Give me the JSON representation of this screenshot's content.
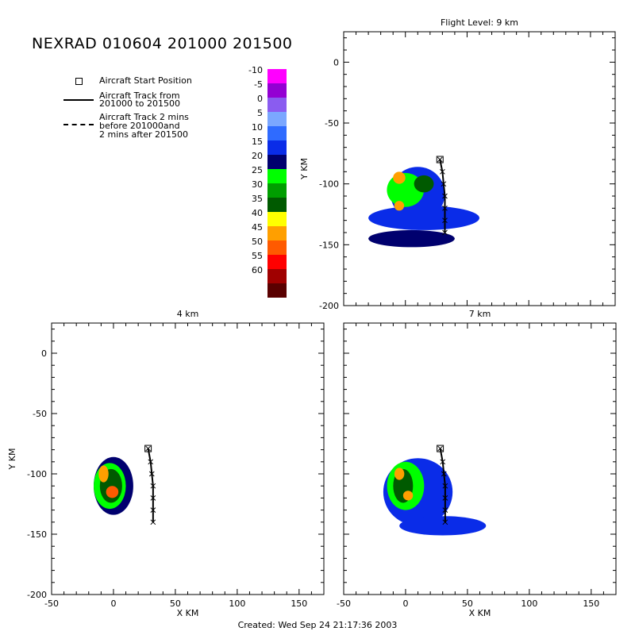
{
  "title": "NEXRAD 010604 201000 201500",
  "created": "Created: Wed Sep 24 21:17:36 2003",
  "legend": {
    "start_label": "Aircraft Start Position",
    "track_lines": [
      "Aircraft Track from",
      "201000 to 201500"
    ],
    "track2_lines": [
      "Aircraft Track 2 mins",
      "before 201000and",
      "2 mins after 201500"
    ]
  },
  "colorbar": {
    "levels": [
      {
        "label": "-10",
        "color": "#ff00ff"
      },
      {
        "label": "-5",
        "color": "#9400d3"
      },
      {
        "label": "0",
        "color": "#8a5cf0"
      },
      {
        "label": "5",
        "color": "#7ba7ff"
      },
      {
        "label": "10",
        "color": "#2f6bff"
      },
      {
        "label": "15",
        "color": "#0a2ce8"
      },
      {
        "label": "20",
        "color": "#00006e"
      },
      {
        "label": "25",
        "color": "#00ff00"
      },
      {
        "label": "30",
        "color": "#009e00"
      },
      {
        "label": "35",
        "color": "#005a00"
      },
      {
        "label": "40",
        "color": "#ffff00"
      },
      {
        "label": "45",
        "color": "#ff9f00"
      },
      {
        "label": "50",
        "color": "#ff5a00"
      },
      {
        "label": "55",
        "color": "#ff0000"
      },
      {
        "label": "60",
        "color": "#a00000"
      },
      {
        "label": "",
        "color": "#5a0000"
      }
    ]
  },
  "chart_data": [
    {
      "type": "heatmap",
      "title": "Flight Level: 9 km",
      "xlabel": "",
      "ylabel": "Y KM",
      "xlim": [
        -50,
        170
      ],
      "ylim": [
        -200,
        25
      ],
      "xticks": [],
      "yticks": [
        "0",
        "-50",
        "-100",
        "-150",
        "-200"
      ],
      "start_position": [
        28,
        -80
      ],
      "track": [
        [
          28,
          -80
        ],
        [
          30,
          -90
        ],
        [
          31,
          -100
        ],
        [
          32,
          -110
        ],
        [
          32,
          -120
        ],
        [
          32,
          -130
        ],
        [
          32,
          -140
        ]
      ],
      "cells": [
        {
          "x": 10,
          "y": -108,
          "rx": 22,
          "ry": 22,
          "dbz": 15
        },
        {
          "x": 15,
          "y": -128,
          "rx": 45,
          "ry": 10,
          "dbz": 15
        },
        {
          "x": 5,
          "y": -145,
          "rx": 35,
          "ry": 7,
          "dbz": 20
        },
        {
          "x": 0,
          "y": -105,
          "rx": 15,
          "ry": 14,
          "dbz": 25
        },
        {
          "x": 15,
          "y": -100,
          "rx": 8,
          "ry": 7,
          "dbz": 35
        },
        {
          "x": -5,
          "y": -95,
          "rx": 5,
          "ry": 5,
          "dbz": 45
        },
        {
          "x": -5,
          "y": -118,
          "rx": 4,
          "ry": 4,
          "dbz": 45
        }
      ]
    },
    {
      "type": "heatmap",
      "title": "4 km",
      "xlabel": "X KM",
      "ylabel": "Y KM",
      "xlim": [
        -50,
        170
      ],
      "ylim": [
        -200,
        25
      ],
      "xticks": [
        "-50",
        "0",
        "50",
        "100",
        "150"
      ],
      "yticks": [
        "0",
        "-50",
        "-100",
        "-150",
        "-200"
      ],
      "start_position": [
        28,
        -79
      ],
      "track": [
        [
          28,
          -79
        ],
        [
          30,
          -90
        ],
        [
          31,
          -100
        ],
        [
          32,
          -110
        ],
        [
          32,
          -120
        ],
        [
          32,
          -130
        ],
        [
          32,
          -140
        ]
      ],
      "cells": [
        {
          "x": 0,
          "y": -110,
          "rx": 16,
          "ry": 24,
          "dbz": 20
        },
        {
          "x": -3,
          "y": -110,
          "rx": 13,
          "ry": 19,
          "dbz": 25
        },
        {
          "x": -2,
          "y": -110,
          "rx": 9,
          "ry": 14,
          "dbz": 35
        },
        {
          "x": -8,
          "y": -100,
          "rx": 4,
          "ry": 7,
          "dbz": 45
        },
        {
          "x": -1,
          "y": -115,
          "rx": 5,
          "ry": 5,
          "dbz": 50
        }
      ]
    },
    {
      "type": "heatmap",
      "title": "7 km",
      "xlabel": "X KM",
      "ylabel": "",
      "xlim": [
        -50,
        170
      ],
      "ylim": [
        -200,
        25
      ],
      "xticks": [
        "-50",
        "0",
        "50",
        "100",
        "150"
      ],
      "yticks": [],
      "start_position": [
        28,
        -79
      ],
      "track": [
        [
          28,
          -79
        ],
        [
          30,
          -90
        ],
        [
          31,
          -100
        ],
        [
          32,
          -110
        ],
        [
          32,
          -120
        ],
        [
          32,
          -130
        ],
        [
          32,
          -140
        ]
      ],
      "cells": [
        {
          "x": 10,
          "y": -115,
          "rx": 28,
          "ry": 28,
          "dbz": 15
        },
        {
          "x": 30,
          "y": -143,
          "rx": 35,
          "ry": 8,
          "dbz": 15
        },
        {
          "x": 0,
          "y": -110,
          "rx": 15,
          "ry": 20,
          "dbz": 25
        },
        {
          "x": -2,
          "y": -110,
          "rx": 8,
          "ry": 14,
          "dbz": 35
        },
        {
          "x": -5,
          "y": -100,
          "rx": 4,
          "ry": 5,
          "dbz": 45
        },
        {
          "x": 2,
          "y": -118,
          "rx": 4,
          "ry": 4,
          "dbz": 45
        }
      ]
    }
  ]
}
